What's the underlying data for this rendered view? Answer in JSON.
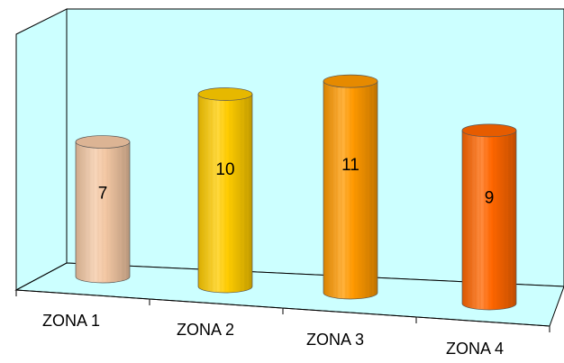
{
  "chart_data": {
    "type": "bar",
    "categories": [
      "ZONA 1",
      "ZONA 2",
      "ZONA 3",
      "ZONA 4"
    ],
    "values": [
      7,
      10,
      11,
      9
    ],
    "ylim": [
      0,
      12
    ],
    "grid": false,
    "legend": "none",
    "shape": "cylinder",
    "colors": {
      "wall": "#CCFFFF",
      "bars": [
        "#F4C8A4",
        "#FFCC00",
        "#FF9900",
        "#FF6600"
      ]
    }
  }
}
